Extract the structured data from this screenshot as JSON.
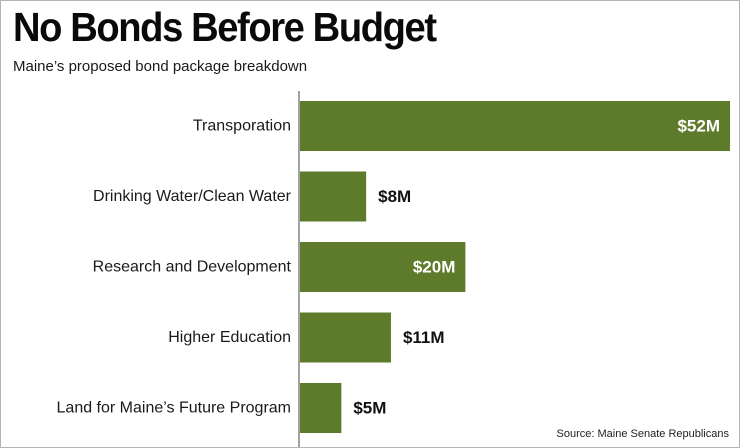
{
  "title": "No Bonds Before Budget",
  "subtitle": "Maine’s proposed bond package breakdown",
  "source": "Source: Maine Senate Republicans",
  "colors": {
    "bar": "#5e7b2c",
    "axis": "#444444",
    "value_inside": "#ffffff",
    "value_outside": "#111111"
  },
  "chart_data": {
    "type": "bar",
    "orientation": "horizontal",
    "title": "No Bonds Before Budget",
    "subtitle": "Maine’s proposed bond package breakdown",
    "categories": [
      "Transporation",
      "Drinking Water/Clean Water",
      "Research and Development",
      "Higher Education",
      "Land for Maine’s Future Program"
    ],
    "values": [
      52,
      8,
      20,
      11,
      5
    ],
    "value_labels": [
      "$52M",
      "$8M",
      "$20M",
      "$11M",
      "$5M"
    ],
    "unit": "millions of dollars",
    "xlim": [
      0,
      52
    ],
    "grid": false,
    "legend": "none"
  }
}
